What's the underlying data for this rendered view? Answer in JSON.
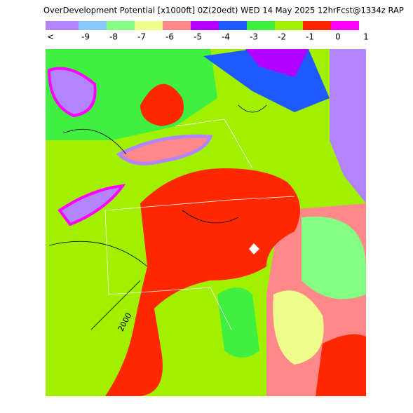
{
  "header": {
    "title": "OverDevelopment Potential [x1000ft] 0Z(20edt) WED 14 May 2025 12hrFcst@1334z RAP"
  },
  "colorbar": {
    "labels": [
      "<",
      "-9",
      "-8",
      "-7",
      "-6",
      "-5",
      "-4",
      "-3",
      "-2",
      "-1",
      "0",
      "1"
    ],
    "colors": [
      "#b484ff",
      "#88c8ff",
      "#84ff84",
      "#f0ff8c",
      "#ff8888",
      "#b400ff",
      "#1e5aff",
      "#40f040",
      "#a0f000",
      "#ff2800",
      "#ff00ff"
    ]
  },
  "map": {
    "contour_label": "2000"
  }
}
